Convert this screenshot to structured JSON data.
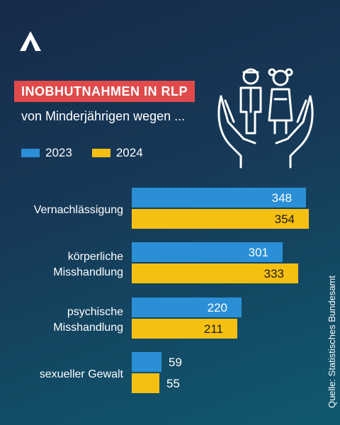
{
  "header": {
    "title": "INOBHUTNAHMEN IN RLP",
    "subtitle": "von Minderjährigen wegen ..."
  },
  "source": "Quelle: Statistisches Bundesamt",
  "icons": {
    "logo": "brand-logo-icon",
    "illustration": "hands-protecting-children-icon"
  },
  "colors": {
    "series_2023": "#2a8fd6",
    "series_2024": "#f6c012",
    "title_badge": "#e04a4a",
    "background": "#163a58"
  },
  "chart_data": {
    "type": "bar",
    "orientation": "horizontal",
    "categories": [
      [
        "Vernachlässigung"
      ],
      [
        "körperliche",
        "Misshandlung"
      ],
      [
        "psychische",
        "Misshandlung"
      ],
      [
        "sexueller Gewalt"
      ]
    ],
    "series": [
      {
        "name": "2023",
        "values": [
          348,
          301,
          220,
          59
        ]
      },
      {
        "name": "2024",
        "values": [
          354,
          333,
          211,
          55
        ]
      }
    ],
    "xlim": [
      0,
      354
    ],
    "grid": false,
    "legend": "top-left"
  }
}
